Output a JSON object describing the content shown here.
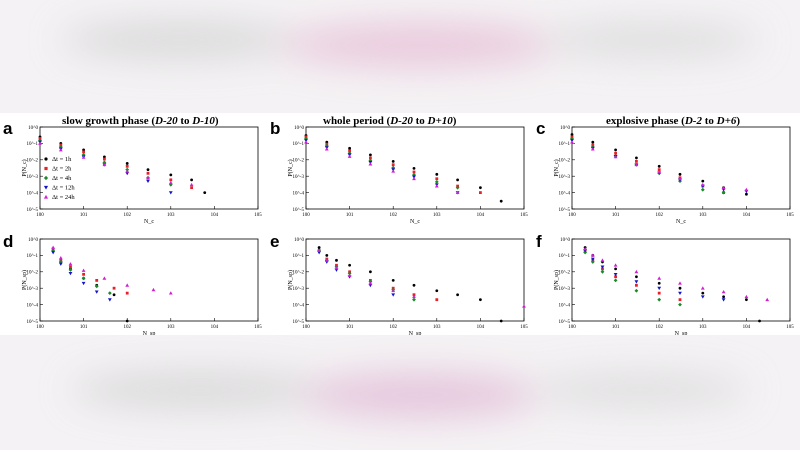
{
  "columns": [
    {
      "pre": "slow growth phase (",
      "a": "D-20",
      "mid": " to ",
      "b": "D-10",
      "post": ")"
    },
    {
      "pre": "whole period (",
      "a": "D-20",
      "mid": " to ",
      "b": "D+10",
      "post": ")"
    },
    {
      "pre": "explosive phase (",
      "a": "D-2",
      "mid": " to ",
      "b": "D+6",
      "post": ")"
    }
  ],
  "panel_letters": [
    "a",
    "b",
    "c",
    "d",
    "e",
    "f"
  ],
  "colors": {
    "1h": "#000000",
    "2h": "#e8202a",
    "4h": "#1a8a2a",
    "12h": "#1414c8",
    "24h": "#d21ed2"
  },
  "chart_data": [
    {
      "id": "a",
      "type": "scatter",
      "xlabel": "N_c",
      "ylabel": "P(N_c)",
      "log_x": true,
      "log_y": true,
      "yticks": [
        "10^0",
        "10^-1",
        "10^-2",
        "10^-3",
        "10^-4",
        "10^-5"
      ],
      "legend": [
        "Δt = 1h",
        "Δt = 2h",
        "Δt = 4h",
        "Δt = 12h",
        "Δt = 24h"
      ],
      "legend_position": "left",
      "series": [
        {
          "name": "Δt = 1h",
          "color": "#000000",
          "x": [
            1,
            3,
            10,
            30,
            100,
            300,
            1000,
            3000,
            6000
          ],
          "y": [
            0.25,
            0.1,
            0.04,
            0.015,
            0.006,
            0.0025,
            0.0012,
            0.0006,
            0.0001
          ]
        },
        {
          "name": "Δt = 2h",
          "color": "#e8202a",
          "x": [
            1,
            3,
            10,
            30,
            100,
            300,
            1000,
            3000
          ],
          "y": [
            0.2,
            0.08,
            0.03,
            0.011,
            0.004,
            0.0015,
            0.0006,
            0.0002
          ]
        },
        {
          "name": "Δt = 4h",
          "color": "#1a8a2a",
          "x": [
            1,
            3,
            10,
            30,
            100,
            300,
            1000
          ],
          "y": [
            0.15,
            0.06,
            0.02,
            0.007,
            0.0025,
            0.0008,
            0.0003
          ]
        },
        {
          "name": "Δt = 12h",
          "color": "#1414c8",
          "x": [
            1,
            3,
            10,
            30,
            100,
            300,
            1000
          ],
          "y": [
            0.12,
            0.045,
            0.015,
            0.005,
            0.0015,
            0.0005,
            0.0001
          ]
        },
        {
          "name": "Δt = 24h",
          "color": "#d21ed2",
          "x": [
            1,
            3,
            10,
            30,
            100,
            300,
            1000,
            3000
          ],
          "y": [
            0.1,
            0.04,
            0.014,
            0.005,
            0.002,
            0.0008,
            0.0004,
            0.0003
          ]
        }
      ]
    },
    {
      "id": "b",
      "type": "scatter",
      "xlabel": "N_c",
      "ylabel": "P(N_c)",
      "log_x": true,
      "log_y": true,
      "yticks": [
        "10^0",
        "10^-1",
        "10^-2",
        "10^-3",
        "10^-4",
        "10^-5"
      ],
      "series": [
        {
          "name": "1h",
          "color": "#000000",
          "x": [
            1,
            3,
            10,
            30,
            100,
            300,
            1000,
            3000,
            10000,
            30000
          ],
          "y": [
            0.3,
            0.12,
            0.05,
            0.02,
            0.008,
            0.003,
            0.0013,
            0.0006,
            0.0002,
            3e-05
          ]
        },
        {
          "name": "2h",
          "color": "#e8202a",
          "x": [
            1,
            3,
            10,
            30,
            100,
            300,
            1000,
            3000,
            10000
          ],
          "y": [
            0.25,
            0.09,
            0.035,
            0.013,
            0.005,
            0.0018,
            0.0007,
            0.00025,
            0.0001
          ]
        },
        {
          "name": "4h",
          "color": "#1a8a2a",
          "x": [
            1,
            3,
            10,
            30,
            100,
            300,
            1000,
            3000
          ],
          "y": [
            0.2,
            0.07,
            0.025,
            0.009,
            0.0033,
            0.0012,
            0.00045,
            0.0002
          ]
        },
        {
          "name": "12h",
          "color": "#1414c8",
          "x": [
            1,
            3,
            10,
            30,
            100,
            300,
            1000,
            3000
          ],
          "y": [
            0.15,
            0.055,
            0.02,
            0.007,
            0.0025,
            0.0009,
            0.0003,
            0.0001
          ]
        },
        {
          "name": "24h",
          "color": "#d21ed2",
          "x": [
            1,
            3,
            10,
            30,
            100,
            300,
            1000,
            3000
          ],
          "y": [
            0.12,
            0.045,
            0.016,
            0.0055,
            0.002,
            0.0007,
            0.00025,
            0.0001
          ]
        }
      ]
    },
    {
      "id": "c",
      "type": "scatter",
      "xlabel": "N_c",
      "ylabel": "P(N_c)",
      "log_x": true,
      "log_y": true,
      "yticks": [
        "10^0",
        "10^-1",
        "10^-2",
        "10^-3",
        "10^-4",
        "10^-5"
      ],
      "series": [
        {
          "name": "1h",
          "color": "#000000",
          "x": [
            1,
            3,
            10,
            30,
            100,
            300,
            1000,
            3000,
            10000
          ],
          "y": [
            0.35,
            0.12,
            0.04,
            0.013,
            0.004,
            0.0013,
            0.0005,
            0.0002,
            8e-05
          ]
        },
        {
          "name": "2h",
          "color": "#e8202a",
          "x": [
            1,
            3,
            10,
            30,
            100,
            300,
            1000,
            3000
          ],
          "y": [
            0.25,
            0.08,
            0.025,
            0.008,
            0.0025,
            0.0008,
            0.00025,
            0.0001
          ]
        },
        {
          "name": "4h",
          "color": "#1a8a2a",
          "x": [
            1,
            3,
            10,
            30,
            100,
            300,
            1000,
            3000
          ],
          "y": [
            0.2,
            0.06,
            0.017,
            0.005,
            0.0015,
            0.0005,
            0.00015,
            0.0001
          ]
        },
        {
          "name": "12h",
          "color": "#1414c8",
          "x": [
            1,
            3,
            10,
            30,
            100,
            300,
            1000,
            3000,
            10000
          ],
          "y": [
            0.15,
            0.05,
            0.016,
            0.005,
            0.0016,
            0.0006,
            0.00025,
            0.00015,
            0.00012
          ]
        },
        {
          "name": "24h",
          "color": "#d21ed2",
          "x": [
            1,
            3,
            10,
            30,
            100,
            300,
            1000,
            3000,
            10000
          ],
          "y": [
            0.12,
            0.045,
            0.015,
            0.005,
            0.0018,
            0.0007,
            0.0003,
            0.0002,
            0.00015
          ]
        }
      ]
    },
    {
      "id": "d",
      "type": "scatter",
      "xlabel": "N_sp",
      "ylabel": "P(N_sp)",
      "log_x": true,
      "log_y": true,
      "yticks": [
        "10^0",
        "10^-1",
        "10^-2",
        "10^-3",
        "10^-4",
        "10^-5"
      ],
      "series": [
        {
          "name": "1h",
          "color": "#000000",
          "x": [
            2,
            3,
            5,
            10,
            20,
            50,
            100
          ],
          "y": [
            0.2,
            0.04,
            0.015,
            0.004,
            0.0015,
            0.0004,
            1e-05
          ]
        },
        {
          "name": "2h",
          "color": "#e8202a",
          "x": [
            2,
            3,
            5,
            10,
            20,
            50,
            100
          ],
          "y": [
            0.25,
            0.05,
            0.02,
            0.007,
            0.003,
            0.001,
            0.0005
          ]
        },
        {
          "name": "4h",
          "color": "#1a8a2a",
          "x": [
            2,
            3,
            5,
            10,
            20,
            40
          ],
          "y": [
            0.2,
            0.04,
            0.013,
            0.004,
            0.0013,
            0.0005
          ]
        },
        {
          "name": "12h",
          "color": "#1414c8",
          "x": [
            2,
            3,
            5,
            10,
            20,
            40
          ],
          "y": [
            0.15,
            0.03,
            0.008,
            0.002,
            0.0006,
            0.0002
          ]
        },
        {
          "name": "24h",
          "color": "#d21ed2",
          "x": [
            2,
            3,
            5,
            10,
            30,
            100,
            400,
            1000
          ],
          "y": [
            0.3,
            0.07,
            0.03,
            0.012,
            0.004,
            0.0015,
            0.0008,
            0.0005
          ]
        }
      ]
    },
    {
      "id": "e",
      "type": "scatter",
      "xlabel": "N_sp",
      "ylabel": "P(N_sp)",
      "log_x": true,
      "log_y": true,
      "yticks": [
        "10^0",
        "10^-1",
        "10^-2",
        "10^-3",
        "10^-4",
        "10^-5"
      ],
      "series": [
        {
          "name": "1h",
          "color": "#000000",
          "x": [
            2,
            3,
            5,
            10,
            30,
            100,
            300,
            1000,
            3000,
            10000,
            30000
          ],
          "y": [
            0.3,
            0.1,
            0.05,
            0.025,
            0.01,
            0.003,
            0.0015,
            0.0007,
            0.0004,
            0.0002,
            1e-05
          ]
        },
        {
          "name": "2h",
          "color": "#e8202a",
          "x": [
            2,
            3,
            5,
            10,
            30,
            100,
            300,
            1000
          ],
          "y": [
            0.2,
            0.06,
            0.025,
            0.01,
            0.003,
            0.001,
            0.0004,
            0.0002
          ]
        },
        {
          "name": "4h",
          "color": "#1a8a2a",
          "x": [
            2,
            3,
            5,
            10,
            30,
            100,
            300
          ],
          "y": [
            0.2,
            0.05,
            0.02,
            0.008,
            0.0025,
            0.0008,
            0.0002
          ]
        },
        {
          "name": "12h",
          "color": "#1414c8",
          "x": [
            2,
            3,
            5,
            10,
            30,
            100
          ],
          "y": [
            0.15,
            0.04,
            0.013,
            0.005,
            0.0015,
            0.0004
          ]
        },
        {
          "name": "24h",
          "color": "#d21ed2",
          "x": [
            2,
            3,
            5,
            10,
            30,
            100,
            300,
            100000
          ],
          "y": [
            0.2,
            0.05,
            0.017,
            0.006,
            0.002,
            0.0007,
            0.0003,
            8e-05
          ]
        }
      ]
    },
    {
      "id": "f",
      "type": "scatter",
      "xlabel": "N_sp",
      "ylabel": "P(N_sp)",
      "log_x": true,
      "log_y": true,
      "yticks": [
        "10^0",
        "10^-1",
        "10^-2",
        "10^-3",
        "10^-4",
        "10^-5"
      ],
      "series": [
        {
          "name": "1h",
          "color": "#000000",
          "x": [
            2,
            3,
            5,
            10,
            30,
            100,
            300,
            1000,
            3000,
            10000,
            20000
          ],
          "y": [
            0.3,
            0.1,
            0.04,
            0.015,
            0.005,
            0.002,
            0.001,
            0.0005,
            0.0003,
            0.0002,
            1e-05
          ]
        },
        {
          "name": "2h",
          "color": "#e8202a",
          "x": [
            2,
            3,
            5,
            10,
            30,
            100,
            300
          ],
          "y": [
            0.2,
            0.05,
            0.015,
            0.005,
            0.0015,
            0.0005,
            0.0002
          ]
        },
        {
          "name": "4h",
          "color": "#1a8a2a",
          "x": [
            2,
            3,
            5,
            10,
            30,
            100,
            300
          ],
          "y": [
            0.15,
            0.04,
            0.01,
            0.003,
            0.0007,
            0.0002,
            0.0001
          ]
        },
        {
          "name": "12h",
          "color": "#1414c8",
          "x": [
            2,
            3,
            5,
            10,
            30,
            100,
            300,
            1000,
            3000
          ],
          "y": [
            0.2,
            0.06,
            0.02,
            0.007,
            0.0025,
            0.001,
            0.0005,
            0.0003,
            0.0002
          ]
        },
        {
          "name": "24h",
          "color": "#d21ed2",
          "x": [
            2,
            3,
            5,
            10,
            30,
            100,
            300,
            1000,
            3000,
            10000,
            30000
          ],
          "y": [
            0.25,
            0.1,
            0.05,
            0.025,
            0.01,
            0.004,
            0.002,
            0.001,
            0.0006,
            0.0003,
            0.0002
          ]
        }
      ]
    }
  ]
}
